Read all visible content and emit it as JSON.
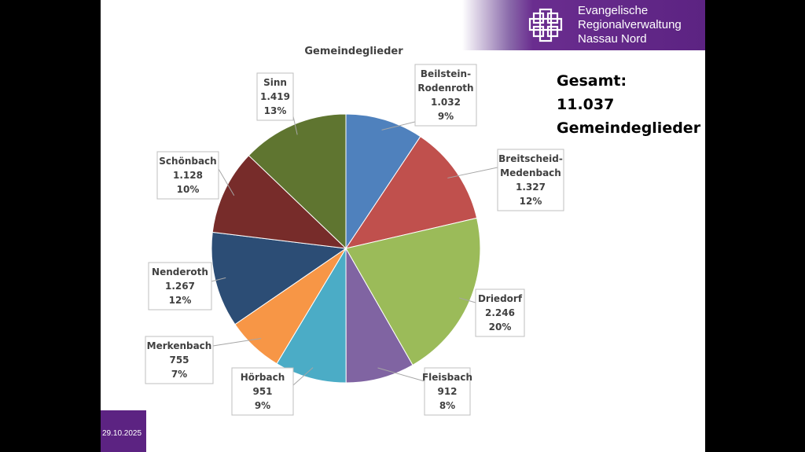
{
  "branding": {
    "org_lines": [
      "Evangelische",
      "Regionalverwaltung",
      "Nassau Nord"
    ]
  },
  "footer": {
    "date": "29.10.2025"
  },
  "total": {
    "lines": [
      "Gesamt:",
      "11.037",
      "Gemeindeglieder"
    ]
  },
  "chart_data": {
    "type": "pie",
    "title": "Gemeindeglieder",
    "start_angle_deg": 0,
    "direction": "clockwise",
    "slices": [
      {
        "name": "Beilstein-Rodenroth",
        "label_lines": [
          "Beilstein-",
          "Rodenroth"
        ],
        "value": 1032,
        "value_label": "1.032",
        "percent_label": "9%",
        "color": "#4f81bd"
      },
      {
        "name": "Breitscheid-Medenbach",
        "label_lines": [
          "Breitscheid-",
          "Medenbach"
        ],
        "value": 1327,
        "value_label": "1.327",
        "percent_label": "12%",
        "color": "#c0504d"
      },
      {
        "name": "Driedorf",
        "label_lines": [
          "Driedorf"
        ],
        "value": 2246,
        "value_label": "2.246",
        "percent_label": "20%",
        "color": "#9bbb59"
      },
      {
        "name": "Fleisbach",
        "label_lines": [
          "Fleisbach"
        ],
        "value": 912,
        "value_label": "912",
        "percent_label": "8%",
        "color": "#8064a2"
      },
      {
        "name": "Hörbach",
        "label_lines": [
          "Hörbach"
        ],
        "value": 951,
        "value_label": "951",
        "percent_label": "9%",
        "color": "#4bacc6"
      },
      {
        "name": "Merkenbach",
        "label_lines": [
          "Merkenbach"
        ],
        "value": 755,
        "value_label": "755",
        "percent_label": "7%",
        "color": "#f79646"
      },
      {
        "name": "Nenderoth",
        "label_lines": [
          "Nenderoth"
        ],
        "value": 1267,
        "value_label": "1.267",
        "percent_label": "12%",
        "color": "#2c4d75"
      },
      {
        "name": "Schönbach",
        "label_lines": [
          "Schönbach"
        ],
        "value": 1128,
        "value_label": "1.128",
        "percent_label": "10%",
        "color": "#772c2a"
      },
      {
        "name": "Sinn",
        "label_lines": [
          "Sinn"
        ],
        "value": 1419,
        "value_label": "1.419",
        "percent_label": "13%",
        "color": "#5f7530"
      }
    ]
  }
}
